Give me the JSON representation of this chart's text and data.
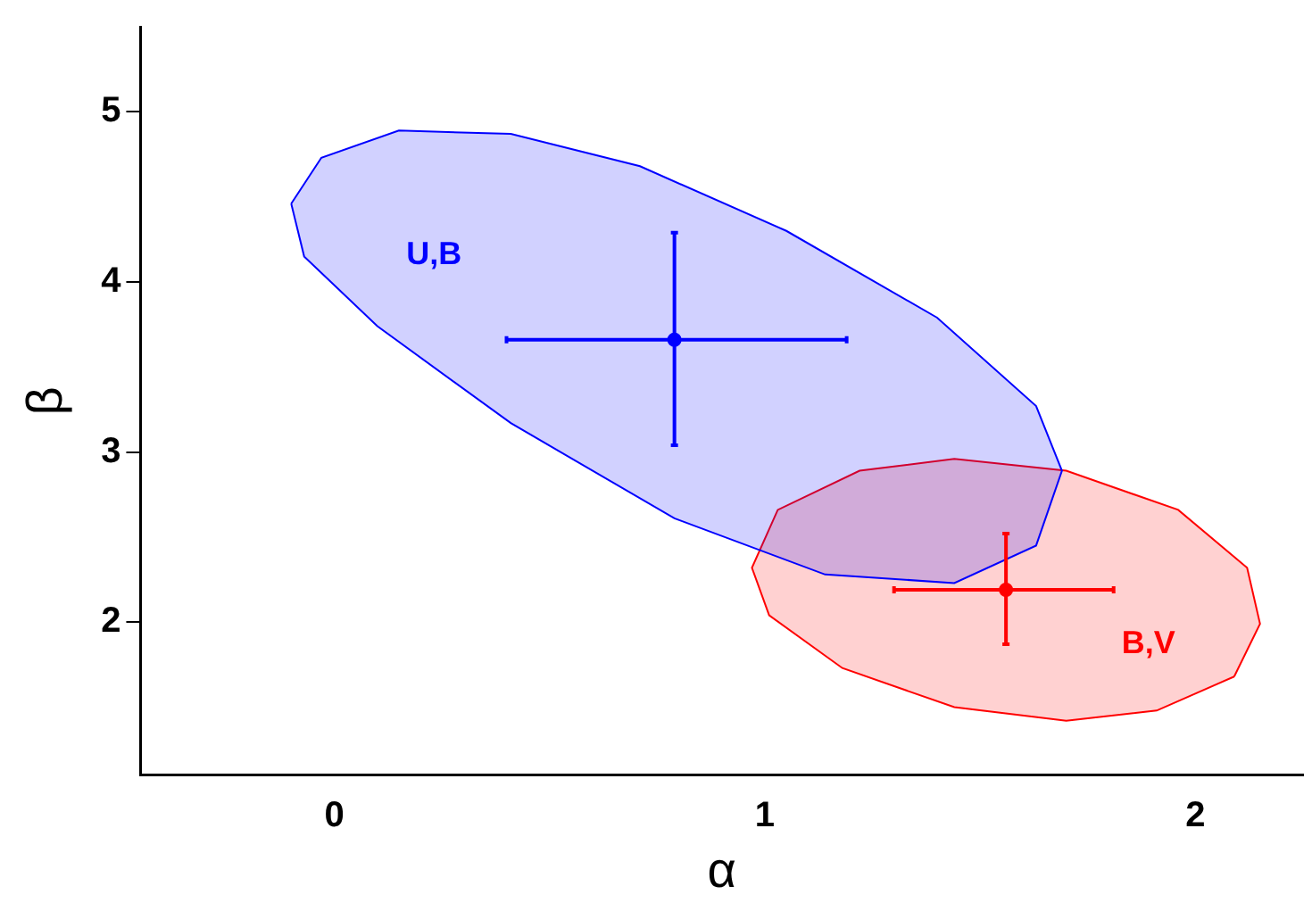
{
  "chart_data": {
    "type": "scatter",
    "xlabel": "α",
    "ylabel": "β",
    "xlim": [
      -0.45,
      2.25
    ],
    "ylim": [
      1.1,
      5.5
    ],
    "xticks": [
      0,
      1,
      2
    ],
    "yticks": [
      2,
      3,
      4,
      5
    ],
    "grid": false,
    "legend": false,
    "series": [
      {
        "type": "area",
        "name": "U,B",
        "color": "#0000ff",
        "x": [
          -0.1,
          -0.03,
          0.15,
          0.41,
          0.71,
          1.05,
          1.4,
          1.63,
          1.69,
          1.63,
          1.44,
          1.14,
          0.79,
          0.41,
          0.1,
          -0.07,
          -0.1
        ],
        "values": [
          4.46,
          4.73,
          4.89,
          4.87,
          4.68,
          4.3,
          3.79,
          3.27,
          2.89,
          2.45,
          2.23,
          2.28,
          2.61,
          3.17,
          3.74,
          4.15,
          4.46
        ]
      },
      {
        "type": "area",
        "name": "B,V",
        "color": "#ff0000",
        "x": [
          2.09,
          1.91,
          1.7,
          1.44,
          1.18,
          1.01,
          0.97,
          1.03,
          1.22,
          1.44,
          1.7,
          1.96,
          2.12,
          2.15,
          2.09
        ],
        "values": [
          1.68,
          1.48,
          1.42,
          1.5,
          1.73,
          2.04,
          2.32,
          2.66,
          2.89,
          2.96,
          2.89,
          2.66,
          2.32,
          1.99,
          1.68
        ]
      },
      {
        "marker": "circle",
        "color": "#0000ff",
        "x": [
          0.79
        ],
        "values": [
          3.66
        ],
        "xerrors": [
          [
            0.4,
            1.19
          ]
        ],
        "errors": [
          [
            3.04,
            4.29
          ]
        ]
      },
      {
        "marker": "circle",
        "color": "#ff0000",
        "x": [
          1.56
        ],
        "values": [
          2.19
        ],
        "xerrors": [
          [
            1.3,
            1.81
          ]
        ],
        "errors": [
          [
            1.87,
            2.52
          ]
        ]
      }
    ]
  }
}
